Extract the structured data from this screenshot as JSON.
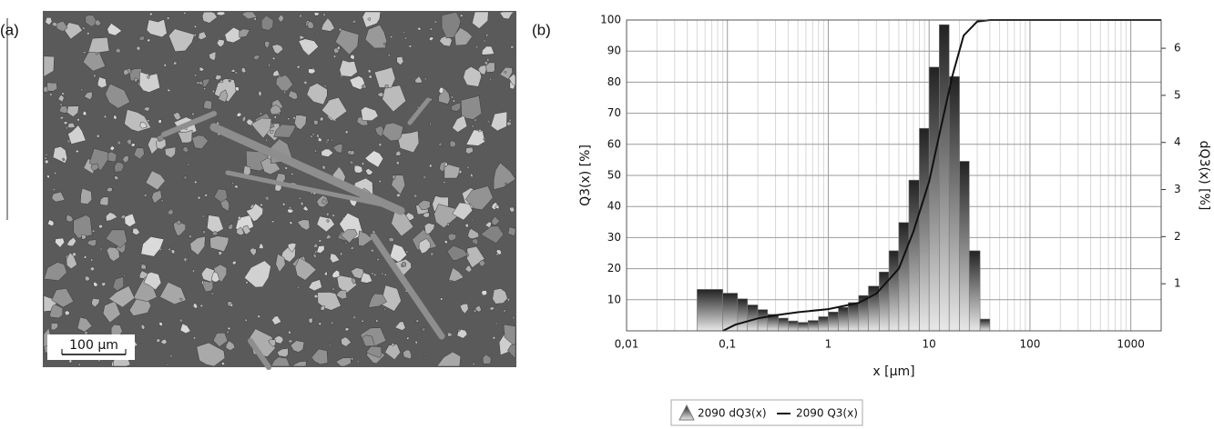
{
  "image_panel": {
    "label": "(a)",
    "scale_bar": "100 µm"
  },
  "chart_data": {
    "type": "combo",
    "panel_label": "(b)",
    "xlabel": "x [µm]",
    "ylabel": "Q3(x) [%]",
    "y2label": "dQ3(x) [%]",
    "log_x": true,
    "grid": true,
    "minor_grid": true,
    "xlim": [
      0.01,
      2000
    ],
    "xticks": [
      {
        "value": 0.01,
        "label": "0,01"
      },
      {
        "value": 0.1,
        "label": "0,1"
      },
      1,
      10,
      100,
      1000
    ],
    "ylim": [
      0,
      100
    ],
    "yticks": [
      10,
      20,
      30,
      40,
      50,
      60,
      70,
      80,
      90,
      100
    ],
    "y2lim": [
      0,
      6.6
    ],
    "y2ticks": [
      1,
      2,
      3,
      4,
      5,
      6
    ],
    "series": [
      {
        "name": "2090 dQ3(x)",
        "type": "histogram",
        "axis": "y2",
        "color": "#9a9a9a",
        "bins": [
          0.05,
          0.09,
          0.126,
          0.158,
          0.2,
          0.25,
          0.32,
          0.4,
          0.5,
          0.63,
          0.8,
          1,
          1.26,
          1.58,
          2,
          2.5,
          3.2,
          4,
          5,
          6.3,
          8,
          10,
          12.6,
          15.8,
          20,
          25,
          32,
          40
        ],
        "values": [
          0.88,
          0.8,
          0.68,
          0.55,
          0.45,
          0.35,
          0.27,
          0.21,
          0.18,
          0.22,
          0.3,
          0.4,
          0.5,
          0.6,
          0.75,
          0.95,
          1.25,
          1.7,
          2.3,
          3.2,
          4.3,
          5.6,
          6.5,
          5.4,
          3.6,
          1.7,
          0.25
        ]
      },
      {
        "name": "2090 Q3(x)",
        "type": "line",
        "color": "#111111",
        "x": [
          0.09,
          0.12,
          0.2,
          0.3,
          0.5,
          1,
          2,
          3,
          5,
          7,
          10,
          13,
          17,
          22,
          30,
          40,
          2000
        ],
        "values": [
          0,
          2,
          4,
          5,
          6,
          7,
          9,
          12,
          20,
          32,
          48,
          65,
          82,
          95,
          99.5,
          100,
          100
        ]
      }
    ]
  }
}
